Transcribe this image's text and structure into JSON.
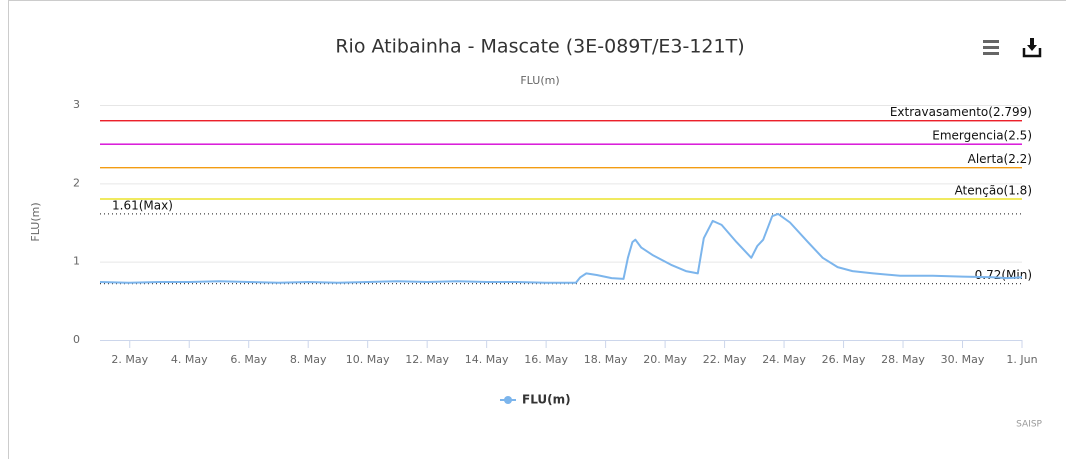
{
  "chart_data": {
    "type": "line",
    "title": "Rio Atibainha - Mascate (3E-089T/E3-121T)",
    "subtitle": "FLU(m)",
    "y_axis_label": "FLU(m)",
    "credits": "SAISP",
    "xlim": [
      1,
      32
    ],
    "xticks": [
      {
        "value": 2,
        "label": "2. May"
      },
      {
        "value": 4,
        "label": "4. May"
      },
      {
        "value": 6,
        "label": "6. May"
      },
      {
        "value": 8,
        "label": "8. May"
      },
      {
        "value": 10,
        "label": "10. May"
      },
      {
        "value": 12,
        "label": "12. May"
      },
      {
        "value": 14,
        "label": "14. May"
      },
      {
        "value": 16,
        "label": "16. May"
      },
      {
        "value": 18,
        "label": "18. May"
      },
      {
        "value": 20,
        "label": "20. May"
      },
      {
        "value": 22,
        "label": "22. May"
      },
      {
        "value": 24,
        "label": "24. May"
      },
      {
        "value": 26,
        "label": "26. May"
      },
      {
        "value": 28,
        "label": "28. May"
      },
      {
        "value": 30,
        "label": "30. May"
      },
      {
        "value": 32,
        "label": "1. Jun"
      }
    ],
    "ylim": [
      0,
      3
    ],
    "yticks": [
      0,
      1,
      2,
      3
    ],
    "grid": true,
    "plot_lines": [
      {
        "label": "Extravasamento(2.799)",
        "value": 2.799,
        "color": "#e8000b",
        "style": "solid",
        "align": "right"
      },
      {
        "label": "Emergencia(2.5)",
        "value": 2.5,
        "color": "#d400d4",
        "style": "solid",
        "align": "right"
      },
      {
        "label": "Alerta(2.2)",
        "value": 2.2,
        "color": "#f39c12",
        "style": "solid",
        "align": "right"
      },
      {
        "label": "Atenção(1.8)",
        "value": 1.8,
        "color": "#e6de00",
        "style": "solid",
        "align": "right"
      },
      {
        "label": "1.61(Max)",
        "value": 1.61,
        "color": "#444444",
        "style": "dotted",
        "align": "left"
      },
      {
        "label": "0.72(Min)",
        "value": 0.72,
        "color": "#444444",
        "style": "dotted",
        "align": "right"
      }
    ],
    "series": [
      {
        "name": "FLU(m)",
        "color": "#7cb5ec",
        "x": [
          1,
          2,
          3,
          4,
          5,
          6,
          7,
          8,
          9,
          10,
          11,
          12,
          13,
          14,
          15,
          16,
          17,
          17.15,
          17.35,
          17.7,
          18.2,
          18.6,
          18.75,
          18.9,
          19.0,
          19.2,
          19.6,
          20.2,
          20.7,
          21.1,
          21.3,
          21.6,
          21.9,
          22.4,
          22.9,
          23.1,
          23.3,
          23.6,
          23.8,
          24.2,
          24.8,
          25.3,
          25.8,
          26.3,
          27,
          27.9,
          29,
          30,
          31,
          31.5,
          32
        ],
        "values": [
          0.74,
          0.73,
          0.74,
          0.74,
          0.75,
          0.74,
          0.73,
          0.74,
          0.73,
          0.74,
          0.75,
          0.74,
          0.75,
          0.74,
          0.74,
          0.73,
          0.73,
          0.8,
          0.85,
          0.83,
          0.79,
          0.78,
          1.05,
          1.25,
          1.28,
          1.18,
          1.08,
          0.96,
          0.88,
          0.85,
          1.3,
          1.52,
          1.47,
          1.25,
          1.05,
          1.2,
          1.28,
          1.58,
          1.61,
          1.5,
          1.25,
          1.05,
          0.93,
          0.88,
          0.85,
          0.82,
          0.82,
          0.81,
          0.8,
          0.79,
          0.8
        ]
      }
    ]
  }
}
